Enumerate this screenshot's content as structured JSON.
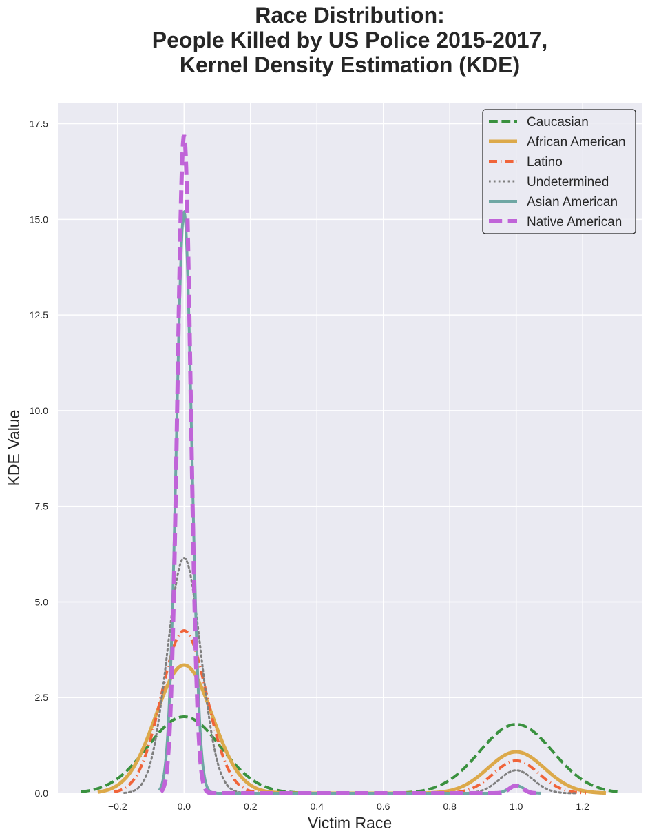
{
  "chart_data": {
    "type": "line",
    "title_lines": [
      "Race Distribution:",
      "People Killed by US Police 2015-2017,",
      "Kernel Density Estimation (KDE)"
    ],
    "xlabel": "Victim Race",
    "ylabel": "KDE Value",
    "xlim": [
      -0.38,
      1.38
    ],
    "ylim": [
      0,
      18.05
    ],
    "xticks": [
      -0.2,
      0.0,
      0.2,
      0.4,
      0.6,
      0.8,
      1.0,
      1.2
    ],
    "xtick_labels": [
      "−0.2",
      "0.0",
      "0.2",
      "0.4",
      "0.6",
      "0.8",
      "1.0",
      "1.2"
    ],
    "yticks": [
      0,
      2.5,
      5,
      7.5,
      10,
      12.5,
      15,
      17.5
    ],
    "ytick_labels": [
      "0.0",
      "2.5",
      "5.0",
      "7.5",
      "10.0",
      "12.5",
      "15.0",
      "17.5"
    ],
    "grid": true,
    "background": "#eaeaf2",
    "legend_position": "top-right",
    "series": [
      {
        "name": "Caucasian",
        "color": "#3a913f",
        "dash": "dashed",
        "width": 4,
        "peak_at_0": 2.0,
        "peak_at_1": 1.8,
        "spread": 0.11,
        "x_range": [
          -0.31,
          1.31
        ]
      },
      {
        "name": "African American",
        "color": "#dca94a",
        "dash": "solid",
        "width": 5,
        "peak_at_0": 3.35,
        "peak_at_1": 1.08,
        "spread": 0.085,
        "x_range": [
          -0.26,
          1.27
        ]
      },
      {
        "name": "Latino",
        "color": "#f0643a",
        "dash": "dashdot",
        "width": 4,
        "peak_at_0": 4.25,
        "peak_at_1": 0.85,
        "spread": 0.068,
        "x_range": [
          -0.21,
          1.21
        ]
      },
      {
        "name": "Undetermined",
        "color": "#7f7f7f",
        "dash": "dotted",
        "width": 3,
        "peak_at_0": 6.15,
        "peak_at_1": 0.6,
        "spread": 0.05,
        "x_range": [
          -0.18,
          1.18
        ]
      },
      {
        "name": "Asian American",
        "color": "#6fa7a4",
        "dash": "solid",
        "width": 4,
        "peak_at_0": 15.2,
        "peak_at_1": 0.2,
        "spread": 0.023,
        "x_range": [
          -0.075,
          1.075
        ]
      },
      {
        "name": "Native American",
        "color": "#c064d8",
        "dash": "dashed",
        "width": 6,
        "peak_at_0": 17.2,
        "peak_at_1": 0.2,
        "spread": 0.02,
        "x_range": [
          -0.07,
          1.07
        ]
      }
    ]
  }
}
